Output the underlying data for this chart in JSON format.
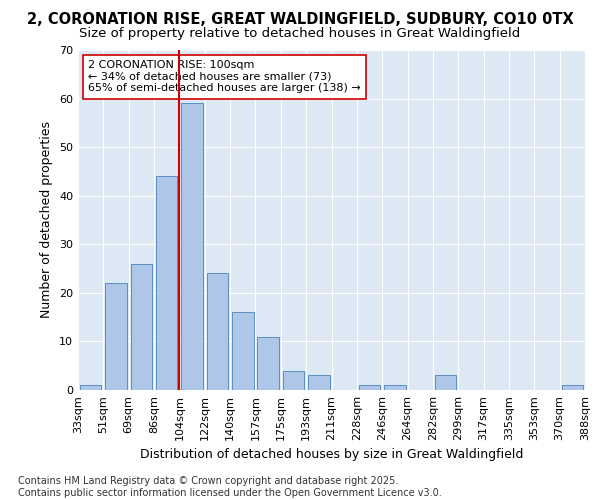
{
  "title1": "2, CORONATION RISE, GREAT WALDINGFIELD, SUDBURY, CO10 0TX",
  "title2": "Size of property relative to detached houses in Great Waldingfield",
  "xlabel": "Distribution of detached houses by size in Great Waldingfield",
  "ylabel": "Number of detached properties",
  "bins": [
    "33sqm",
    "51sqm",
    "69sqm",
    "86sqm",
    "104sqm",
    "122sqm",
    "140sqm",
    "157sqm",
    "175sqm",
    "193sqm",
    "211sqm",
    "228sqm",
    "246sqm",
    "264sqm",
    "282sqm",
    "299sqm",
    "317sqm",
    "335sqm",
    "353sqm",
    "370sqm",
    "388sqm"
  ],
  "values": [
    1,
    22,
    26,
    44,
    59,
    24,
    16,
    11,
    4,
    3,
    0,
    1,
    1,
    0,
    3,
    0,
    0,
    0,
    0,
    1
  ],
  "bar_color": "#aec6e8",
  "bar_edge_color": "#5a8fc2",
  "bg_color": "#dde8f5",
  "grid_color": "#ffffff",
  "vline_x_index": 4,
  "vline_color": "#cc0000",
  "annotation_text": "2 CORONATION RISE: 100sqm\n← 34% of detached houses are smaller (73)\n65% of semi-detached houses are larger (138) →",
  "annotation_box_color": "#ffffff",
  "annotation_box_edge": "#cc0000",
  "ylim": [
    0,
    70
  ],
  "yticks": [
    0,
    10,
    20,
    30,
    40,
    50,
    60,
    70
  ],
  "footnote": "Contains HM Land Registry data © Crown copyright and database right 2025.\nContains public sector information licensed under the Open Government Licence v3.0.",
  "title_fontsize": 10.5,
  "subtitle_fontsize": 9.5,
  "axis_label_fontsize": 9,
  "tick_fontsize": 8,
  "annot_fontsize": 8,
  "footnote_fontsize": 7
}
